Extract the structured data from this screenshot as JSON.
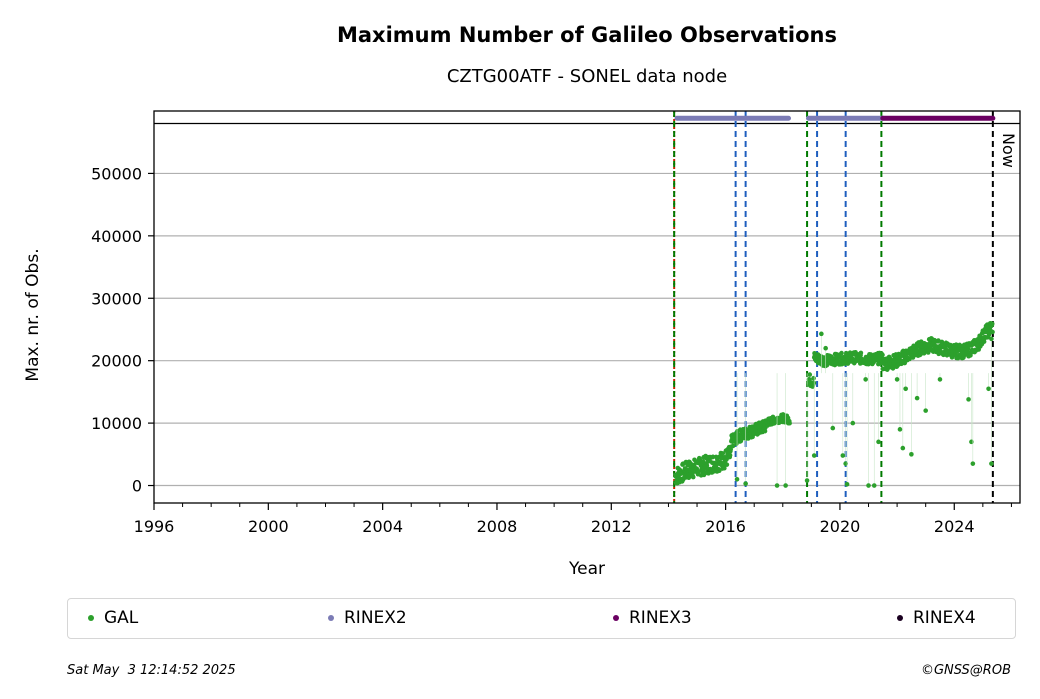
{
  "chart_data": {
    "type": "scatter",
    "title": "Maximum Number of Galileo Observations",
    "subtitle": "CZTG00ATF - SONEL data node",
    "xlabel": "Year",
    "ylabel": "Max. nr. of Obs.",
    "xlim": [
      1996,
      2026.3
    ],
    "ylim": [
      -2800,
      60000
    ],
    "x_ticks": [
      1996,
      2000,
      2004,
      2008,
      2012,
      2016,
      2020,
      2024
    ],
    "y_ticks": [
      0,
      10000,
      20000,
      30000,
      40000,
      50000
    ],
    "grid": "horizontal",
    "cap_line": 58000,
    "series": [
      {
        "name": "GAL",
        "color": "#2ca02c",
        "segments": [
          {
            "x": [
              2014.25,
              2014.7,
              2015.1,
              2015.5,
              2015.9,
              2016.2
            ],
            "y": [
              1500,
              2500,
              3000,
              3500,
              4000,
              5000
            ],
            "spread": 1500
          },
          {
            "x": [
              2016.2,
              2016.5,
              2016.8,
              2017.1,
              2017.4
            ],
            "y": [
              7000,
              8000,
              8500,
              9000,
              9500
            ],
            "spread": 1000
          },
          {
            "x": [
              2017.4,
              2017.7,
              2018.0,
              2018.25
            ],
            "y": [
              10000,
              10500,
              10800,
              10500
            ],
            "spread": 600
          },
          {
            "x": [
              2018.9,
              2019.1
            ],
            "y": [
              17000,
              16500
            ],
            "spread": 1000
          },
          {
            "x": [
              2019.1,
              2019.5,
              2020.0,
              2020.5,
              2021.0,
              2021.5
            ],
            "y": [
              20500,
              20000,
              20300,
              20500,
              20200,
              20400
            ],
            "spread": 900
          },
          {
            "x": [
              2021.5,
              2022.0,
              2022.4,
              2022.8,
              2023.2,
              2023.6,
              2024.0,
              2024.4,
              2024.8,
              2025.1,
              2025.35
            ],
            "y": [
              19500,
              20000,
              21000,
              22000,
              22500,
              22000,
              21500,
              21500,
              22500,
              24500,
              25500
            ],
            "spread": 1100
          }
        ],
        "outliers": [
          [
            2016.4,
            1000
          ],
          [
            2016.7,
            300
          ],
          [
            2017.8,
            0
          ],
          [
            2018.1,
            0
          ],
          [
            2018.85,
            800
          ],
          [
            2019.1,
            4800
          ],
          [
            2019.35,
            24300
          ],
          [
            2019.5,
            22000
          ],
          [
            2019.75,
            9200
          ],
          [
            2020.1,
            4800
          ],
          [
            2020.2,
            3500
          ],
          [
            2020.25,
            200
          ],
          [
            2020.45,
            10000
          ],
          [
            2020.9,
            17000
          ],
          [
            2021.0,
            0
          ],
          [
            2021.2,
            0
          ],
          [
            2021.35,
            7000
          ],
          [
            2022.0,
            17000
          ],
          [
            2022.1,
            9000
          ],
          [
            2022.2,
            6000
          ],
          [
            2022.5,
            5000
          ],
          [
            2022.3,
            15500
          ],
          [
            2022.7,
            14000
          ],
          [
            2023.0,
            12000
          ],
          [
            2023.5,
            17000
          ],
          [
            2024.5,
            13800
          ],
          [
            2024.6,
            7000
          ],
          [
            2024.65,
            3500
          ],
          [
            2025.2,
            15500
          ],
          [
            2025.3,
            3500
          ],
          [
            2025.3,
            23500
          ]
        ]
      },
      {
        "name": "RINEX2",
        "color": "#7b7bb5",
        "bars": [
          [
            2014.3,
            2018.2
          ],
          [
            2018.9,
            2021.5
          ]
        ]
      },
      {
        "name": "RINEX3",
        "color": "#6b0062",
        "bars": [
          [
            2021.5,
            2025.35
          ]
        ]
      },
      {
        "name": "RINEX4",
        "color": "#1a0020",
        "bars": []
      }
    ],
    "vlines": [
      {
        "x": 2014.2,
        "color": "#cc2200",
        "style": "dotted"
      },
      {
        "x": 2014.2,
        "color": "#007a00",
        "style": "dashed"
      },
      {
        "x": 2016.35,
        "color": "#1f5fbf",
        "style": "dashed"
      },
      {
        "x": 2016.7,
        "color": "#1f5fbf",
        "style": "dashed"
      },
      {
        "x": 2018.85,
        "color": "#007a00",
        "style": "dashed"
      },
      {
        "x": 2019.2,
        "color": "#1f5fbf",
        "style": "dashed"
      },
      {
        "x": 2020.2,
        "color": "#1f5fbf",
        "style": "dashed"
      },
      {
        "x": 2021.45,
        "color": "#007a00",
        "style": "dashed"
      },
      {
        "x": 2025.35,
        "color": "#000000",
        "style": "dashed",
        "label": "Now"
      }
    ]
  },
  "footer": {
    "timestamp": "Sat May  3 12:14:52 2025",
    "credit": "©GNSS@ROB"
  }
}
